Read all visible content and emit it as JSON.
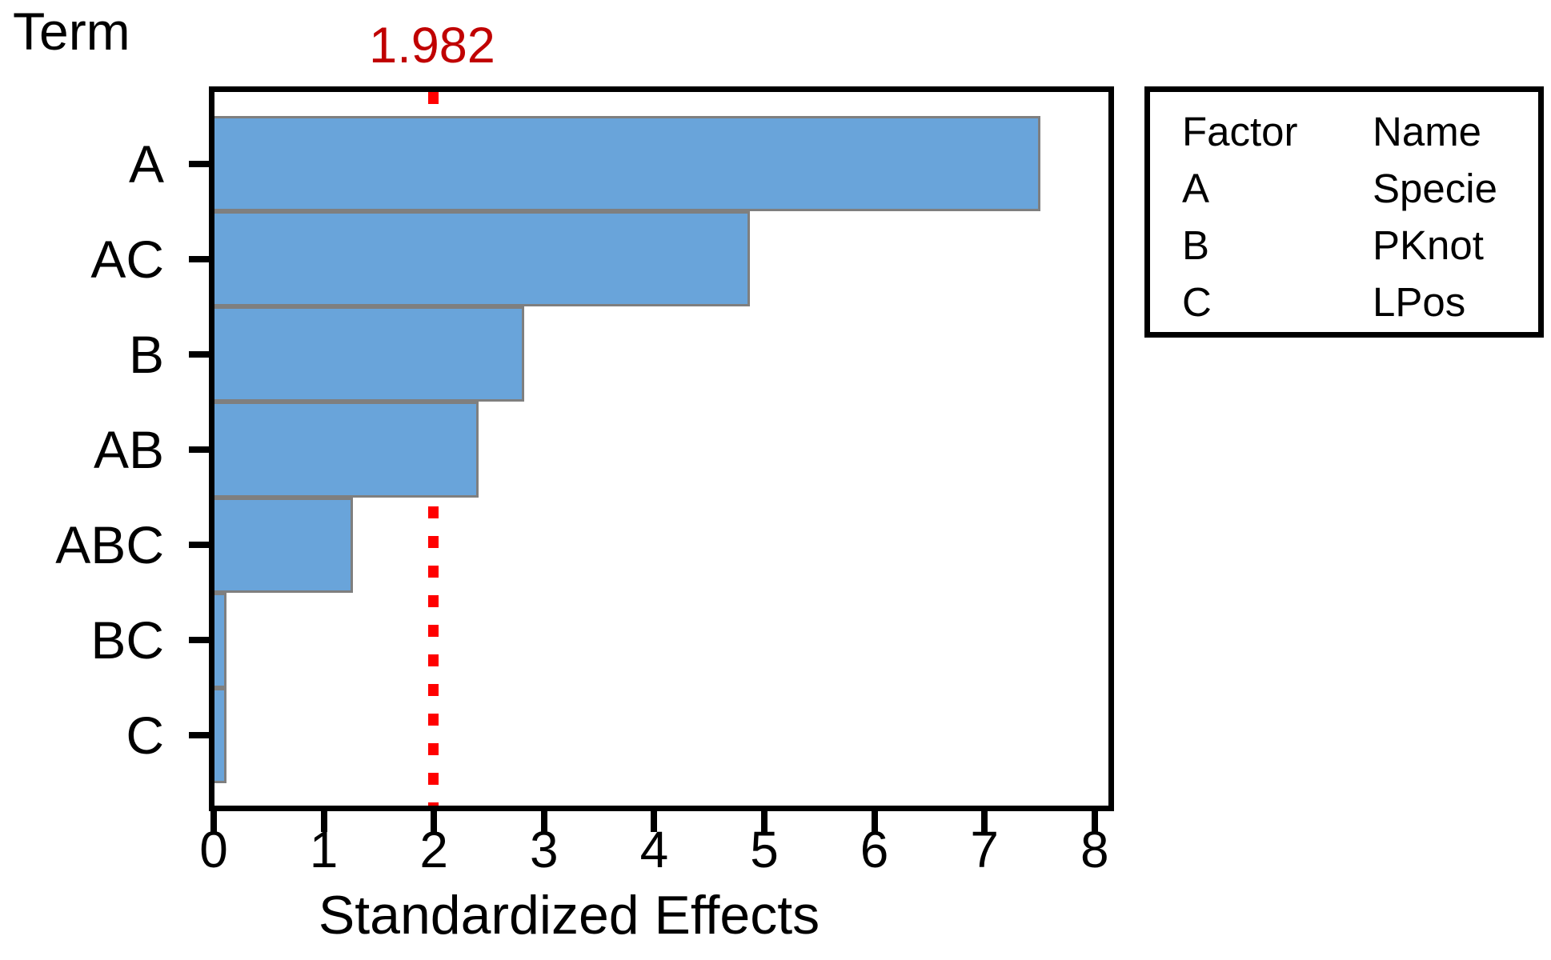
{
  "chart_data": {
    "type": "bar",
    "orientation": "horizontal",
    "title": "",
    "ylabel": "Term",
    "xlabel": "Standardized Effects",
    "categories": [
      "A",
      "AC",
      "B",
      "AB",
      "ABC",
      "BC",
      "C"
    ],
    "values": [
      7.5,
      4.86,
      2.81,
      2.4,
      1.26,
      0.11,
      0.11
    ],
    "xlim": [
      0,
      8
    ],
    "x_ticks": [
      "0",
      "1",
      "2",
      "3",
      "4",
      "5",
      "6",
      "7",
      "8"
    ],
    "reference_line": 1.982,
    "reference_label": "1.982",
    "grid": false,
    "legend_position": "top-right",
    "colors": {
      "bar_fill": "#69A4DA",
      "bar_border": "#7F7F7F",
      "reference_line": "#FF0000",
      "reference_label": "#C00000",
      "frame": "#000000"
    }
  },
  "legend": {
    "headers": [
      "Factor",
      "Name"
    ],
    "rows": [
      {
        "factor": "A",
        "name": "Specie"
      },
      {
        "factor": "B",
        "name": "PKnot"
      },
      {
        "factor": "C",
        "name": "LPos"
      }
    ]
  }
}
